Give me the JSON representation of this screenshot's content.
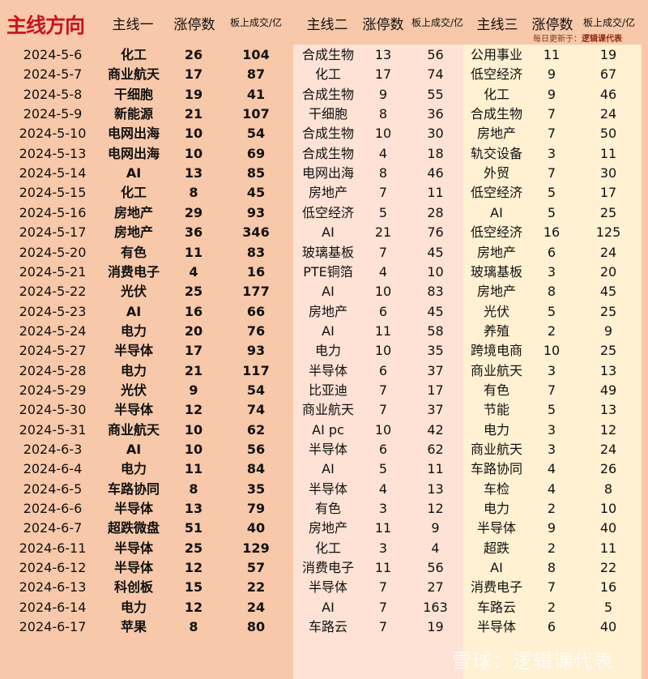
{
  "title": "主线方向",
  "headers": [
    "主线一",
    "涨停数",
    "板上成交/亿",
    "主线二",
    "涨停数",
    "板上成交/亿",
    "主线三",
    "涨停数",
    "板上成交/亿"
  ],
  "update_label": "每日更新于：",
  "update_source": "逻辑课代表",
  "watermark": "雪球：逻辑课代表",
  "colors": {
    "col1_bg": "#f7c8a9",
    "col2_bg": "#fde2d5",
    "col3_bg": "#fff1d2",
    "logo": "#c8141c"
  },
  "rows": [
    [
      "2024-5-6",
      "化工",
      "26",
      "104",
      "合成生物",
      "13",
      "56",
      "公用事业",
      "11",
      "19"
    ],
    [
      "2024-5-7",
      "商业航天",
      "17",
      "87",
      "化工",
      "17",
      "74",
      "低空经济",
      "9",
      "67"
    ],
    [
      "2024-5-8",
      "干细胞",
      "19",
      "41",
      "合成生物",
      "9",
      "55",
      "化工",
      "9",
      "46"
    ],
    [
      "2024-5-9",
      "新能源",
      "21",
      "107",
      "干细胞",
      "8",
      "36",
      "合成生物",
      "7",
      "24"
    ],
    [
      "2024-5-10",
      "电网出海",
      "10",
      "54",
      "合成生物",
      "10",
      "30",
      "房地产",
      "7",
      "50"
    ],
    [
      "2024-5-13",
      "电网出海",
      "10",
      "69",
      "合成生物",
      "4",
      "18",
      "轨交设备",
      "3",
      "11"
    ],
    [
      "2024-5-14",
      "AI",
      "13",
      "85",
      "电网出海",
      "8",
      "46",
      "外贸",
      "7",
      "30"
    ],
    [
      "2024-5-15",
      "化工",
      "8",
      "45",
      "房地产",
      "7",
      "11",
      "低空经济",
      "5",
      "17"
    ],
    [
      "2024-5-16",
      "房地产",
      "29",
      "93",
      "低空经济",
      "5",
      "28",
      "AI",
      "5",
      "25"
    ],
    [
      "2024-5-17",
      "房地产",
      "36",
      "346",
      "AI",
      "21",
      "76",
      "低空经济",
      "16",
      "125"
    ],
    [
      "2024-5-20",
      "有色",
      "11",
      "83",
      "玻璃基板",
      "7",
      "45",
      "房地产",
      "6",
      "24"
    ],
    [
      "2024-5-21",
      "消费电子",
      "4",
      "16",
      "PTE铜箔",
      "4",
      "10",
      "玻璃基板",
      "3",
      "20"
    ],
    [
      "2024-5-22",
      "光伏",
      "25",
      "177",
      "AI",
      "10",
      "83",
      "房地产",
      "8",
      "45"
    ],
    [
      "2024-5-23",
      "AI",
      "16",
      "66",
      "房地产",
      "6",
      "45",
      "光伏",
      "5",
      "25"
    ],
    [
      "2024-5-24",
      "电力",
      "20",
      "76",
      "AI",
      "11",
      "58",
      "养殖",
      "2",
      "9"
    ],
    [
      "2024-5-27",
      "半导体",
      "17",
      "93",
      "电力",
      "10",
      "35",
      "跨境电商",
      "10",
      "25"
    ],
    [
      "2024-5-28",
      "电力",
      "21",
      "117",
      "半导体",
      "6",
      "37",
      "商业航天",
      "3",
      "13"
    ],
    [
      "2024-5-29",
      "光伏",
      "9",
      "54",
      "比亚迪",
      "7",
      "17",
      "有色",
      "7",
      "49"
    ],
    [
      "2024-5-30",
      "半导体",
      "12",
      "74",
      "商业航天",
      "7",
      "37",
      "节能",
      "5",
      "13"
    ],
    [
      "2024-5-31",
      "商业航天",
      "10",
      "62",
      "AI pc",
      "10",
      "42",
      "电力",
      "3",
      "12"
    ],
    [
      "2024-6-3",
      "AI",
      "10",
      "56",
      "半导体",
      "6",
      "62",
      "商业航天",
      "3",
      "24"
    ],
    [
      "2024-6-4",
      "电力",
      "11",
      "84",
      "AI",
      "5",
      "11",
      "车路协同",
      "4",
      "26"
    ],
    [
      "2024-6-5",
      "车路协同",
      "8",
      "35",
      "半导体",
      "4",
      "13",
      "车检",
      "4",
      "8"
    ],
    [
      "2024-6-6",
      "半导体",
      "13",
      "79",
      "有色",
      "3",
      "12",
      "电力",
      "2",
      "10"
    ],
    [
      "2024-6-7",
      "超跌微盘",
      "51",
      "40",
      "房地产",
      "11",
      "9",
      "半导体",
      "9",
      "40"
    ],
    [
      "2024-6-11",
      "半导体",
      "25",
      "129",
      "化工",
      "3",
      "4",
      "超跌",
      "2",
      "11"
    ],
    [
      "2024-6-12",
      "半导体",
      "12",
      "57",
      "消费电子",
      "11",
      "56",
      "AI",
      "8",
      "22"
    ],
    [
      "2024-6-13",
      "科创板",
      "15",
      "22",
      "半导体",
      "7",
      "27",
      "消费电子",
      "7",
      "16"
    ],
    [
      "2024-6-14",
      "电力",
      "12",
      "24",
      "AI",
      "7",
      "163",
      "车路云",
      "2",
      "5"
    ],
    [
      "2024-6-17",
      "苹果",
      "8",
      "80",
      "车路云",
      "7",
      "19",
      "半导体",
      "6",
      "40"
    ]
  ]
}
